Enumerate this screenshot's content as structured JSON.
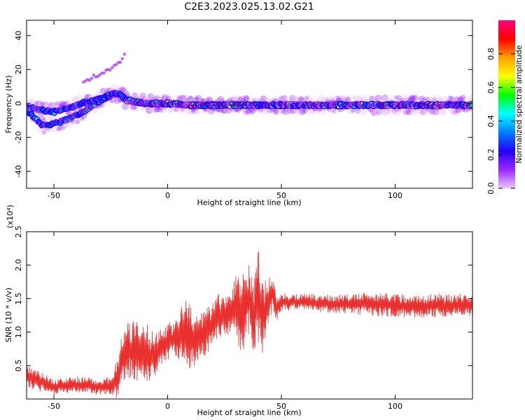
{
  "title": "C2E3.2023.025.13.02.G21",
  "chart_data": [
    {
      "type": "heatmap",
      "xlabel": "Height of straight line (km)",
      "ylabel": "Frequency (Hz)",
      "xlim": [
        -62,
        134
      ],
      "ylim": [
        -50,
        49
      ],
      "xticks": [
        -50,
        0,
        50,
        100
      ],
      "yticks": [
        40,
        20,
        0,
        -20,
        -40
      ],
      "colorbar": {
        "label": "Normalized spectral amplitude",
        "range": [
          0,
          1
        ],
        "ticks": [
          "0.0",
          "0.2",
          "0.4",
          "0.6",
          "0.8"
        ],
        "colors": [
          "#e9c6ff",
          "#9a28ff",
          "#2400ff",
          "#0080ff",
          "#00ffff",
          "#00ff00",
          "#ffff00",
          "#ffa000",
          "#ff0000",
          "#ff0080"
        ]
      },
      "ridge": {
        "x": [
          -62,
          -55,
          -50,
          -45,
          -40,
          -35,
          -30,
          -25,
          -22,
          -18,
          -10,
          0,
          10,
          20,
          30,
          50,
          70,
          90,
          110,
          134
        ],
        "branch_a": [
          -4,
          -13,
          -12,
          -10,
          -7,
          -3,
          1,
          5,
          6,
          2,
          0,
          0,
          -1,
          -1,
          -1,
          -1,
          -1,
          -1,
          -1,
          -1
        ],
        "branch_b": [
          -2,
          -4,
          -5,
          -3,
          -1,
          1,
          3,
          5,
          6,
          2,
          0,
          0,
          -1,
          -1,
          -1,
          -1,
          -1,
          -1,
          -1,
          -1
        ]
      },
      "harmonic": {
        "x": [
          -37,
          -32,
          -27,
          -22,
          -19
        ],
        "y": [
          13,
          16,
          19,
          23,
          28
        ]
      }
    },
    {
      "type": "line",
      "xlabel": "Height of straight line (km)",
      "ylabel": "SNR (10 * v/v)",
      "y_multiplier_label": "(x10⁴)",
      "xlim": [
        -62,
        134
      ],
      "ylim": [
        0,
        2.5
      ],
      "xticks": [
        -50,
        0,
        50,
        100
      ],
      "yticks": [
        "0.5",
        "1.0",
        "1.5",
        "2.0",
        "2.5"
      ],
      "color": "#e8312e",
      "series": [
        {
          "x": [
            -62,
            -58,
            -55,
            -50,
            -45,
            -40,
            -35,
            -30,
            -25,
            -22,
            -20,
            -18,
            -15,
            -12,
            -10,
            -8,
            -5,
            -2,
            0,
            3,
            5,
            8,
            10,
            13,
            15,
            18,
            20,
            22,
            25,
            28,
            30,
            32,
            34,
            36,
            38,
            40,
            42,
            44,
            46,
            48,
            50,
            55,
            60,
            70,
            80,
            90,
            100,
            110,
            120,
            134
          ],
          "mean": [
            0.35,
            0.3,
            0.25,
            0.18,
            0.2,
            0.22,
            0.2,
            0.18,
            0.2,
            0.3,
            0.55,
            0.75,
            0.7,
            0.65,
            0.7,
            0.6,
            0.7,
            0.8,
            0.85,
            0.9,
            0.95,
            1.05,
            0.9,
            0.85,
            0.95,
            1.05,
            1.1,
            1.25,
            1.25,
            1.3,
            1.45,
            1.2,
            1.35,
            1.5,
            1.25,
            1.55,
            1.2,
            1.4,
            1.6,
            1.35,
            1.45,
            1.45,
            1.45,
            1.42,
            1.42,
            1.42,
            1.4,
            1.38,
            1.4,
            1.4
          ],
          "amp": [
            0.15,
            0.15,
            0.12,
            0.1,
            0.1,
            0.1,
            0.1,
            0.1,
            0.12,
            0.3,
            0.35,
            0.35,
            0.4,
            0.4,
            0.45,
            0.35,
            0.3,
            0.25,
            0.25,
            0.25,
            0.3,
            0.4,
            0.45,
            0.35,
            0.3,
            0.3,
            0.3,
            0.3,
            0.25,
            0.3,
            0.4,
            0.5,
            0.5,
            0.45,
            0.5,
            0.6,
            0.45,
            0.35,
            0.25,
            0.15,
            0.12,
            0.1,
            0.1,
            0.12,
            0.12,
            0.15,
            0.15,
            0.15,
            0.15,
            0.15
          ]
        }
      ]
    }
  ]
}
